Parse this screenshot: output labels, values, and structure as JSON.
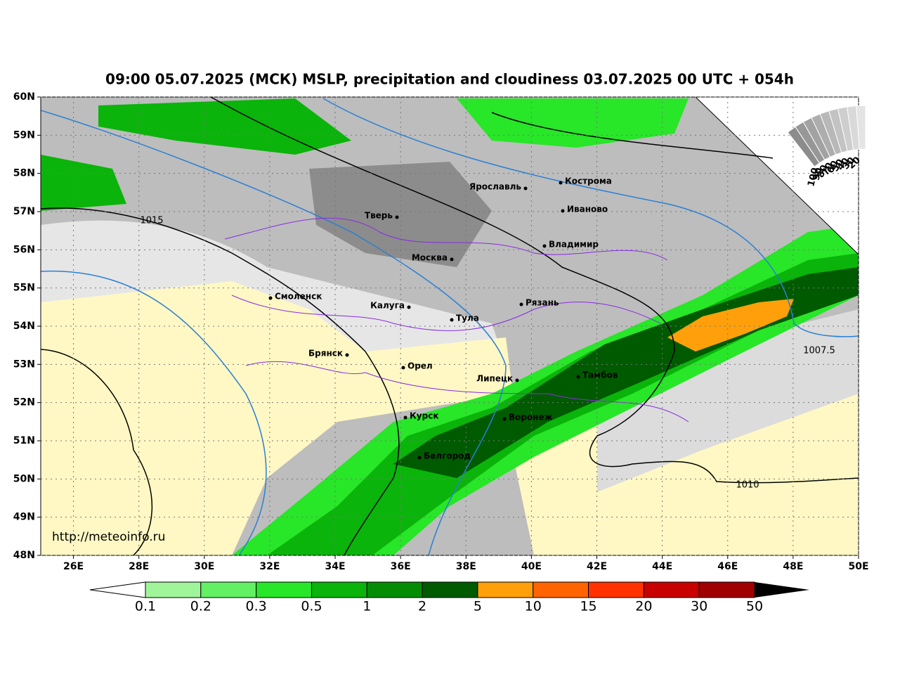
{
  "title": "09:00 05.07.2025 (МСК) MSLP, precipitation and cloudiness 03.07.2025 00 UTC + 054h",
  "map": {
    "lonlim": [
      25,
      50
    ],
    "latlim": [
      48,
      60
    ],
    "lonticks": [
      {
        "value": 26,
        "label": "26E"
      },
      {
        "value": 28,
        "label": "28E"
      },
      {
        "value": 30,
        "label": "30E"
      },
      {
        "value": 32,
        "label": "32E"
      },
      {
        "value": 34,
        "label": "34E"
      },
      {
        "value": 36,
        "label": "36E"
      },
      {
        "value": 38,
        "label": "38E"
      },
      {
        "value": 40,
        "label": "40E"
      },
      {
        "value": 42,
        "label": "42E"
      },
      {
        "value": 44,
        "label": "44E"
      },
      {
        "value": 46,
        "label": "46E"
      },
      {
        "value": 48,
        "label": "48E"
      },
      {
        "value": 50,
        "label": "50E"
      }
    ],
    "latticks": [
      {
        "value": 48,
        "label": "48N"
      },
      {
        "value": 49,
        "label": "49N"
      },
      {
        "value": 50,
        "label": "50N"
      },
      {
        "value": 51,
        "label": "51N"
      },
      {
        "value": 52,
        "label": "52N"
      },
      {
        "value": 53,
        "label": "53N"
      },
      {
        "value": 54,
        "label": "54N"
      },
      {
        "value": 55,
        "label": "55N"
      },
      {
        "value": 56,
        "label": "56N"
      },
      {
        "value": 57,
        "label": "57N"
      },
      {
        "value": 58,
        "label": "58N"
      },
      {
        "value": 59,
        "label": "59N"
      },
      {
        "value": 60,
        "label": "60N"
      }
    ],
    "cities": [
      "Кострома",
      "Ярославль",
      "Тверь",
      "Иваново",
      "Владимир",
      "Москва",
      "Смоленск",
      "Рязань",
      "Калуга",
      "Тула",
      "Брянск",
      "Орел",
      "Липецк",
      "Тамбов",
      "Курск",
      "Воронеж",
      "Белгород"
    ],
    "isobar_labels": [
      1015,
      1010,
      1007.5
    ],
    "url": "http://meteoinfo.ru"
  },
  "cloud_scale": {
    "labels": [
      100,
      90,
      80,
      70,
      60,
      50,
      40,
      30,
      20
    ]
  },
  "colorbar": {
    "labels": [
      0.1,
      0.2,
      0.3,
      0.5,
      1,
      2,
      5,
      10,
      15,
      20,
      30,
      50
    ],
    "colors": [
      "#a0f59a",
      "#64f064",
      "#28e628",
      "#0ab40a",
      "#058c05",
      "#005a00",
      "#ffa00a",
      "#ff6400",
      "#ff3200",
      "#c80000",
      "#a00000"
    ]
  }
}
